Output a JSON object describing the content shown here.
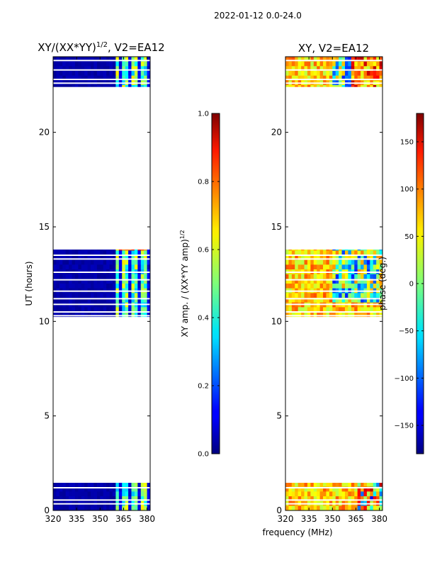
{
  "suptitle": "2022-01-12 0.0-24.0",
  "colors": {
    "white": "#ffffff",
    "black": "#000000"
  },
  "chart_data": [
    {
      "type": "heatmap",
      "id": "amp",
      "title": "XY/(XX*YY)",
      "title_sup": "1/2",
      "title_suffix": ", V2=EA12",
      "xlabel": "",
      "ylabel": "UT (hours)",
      "xlim": [
        320,
        382
      ],
      "ylim": [
        0,
        24
      ],
      "xticks": [
        320,
        335,
        350,
        365,
        380
      ],
      "yticks": [
        0,
        5,
        10,
        15,
        20
      ],
      "empty_band": [
        13.8,
        22.4
      ],
      "colorbar": {
        "label": "XY amp. / (XX*YY amp)",
        "label_sup": "1/2",
        "range": [
          0.0,
          1.0
        ],
        "ticks": [
          "0.0",
          "0.2",
          "0.4",
          "0.6",
          "0.8",
          "1.0"
        ],
        "tick_values": [
          0.0,
          0.2,
          0.4,
          0.6,
          0.8,
          1.0
        ]
      }
    },
    {
      "type": "heatmap",
      "id": "phase",
      "title": "XY, V2=EA12",
      "xlabel": "frequency (MHz)",
      "ylabel": "",
      "xlim": [
        320,
        382
      ],
      "ylim": [
        0,
        24
      ],
      "xticks": [
        320,
        335,
        350,
        365,
        380
      ],
      "yticks": [
        0,
        5,
        10,
        15,
        20
      ],
      "empty_band": [
        13.8,
        22.4
      ],
      "colorbar": {
        "label": "phase (deg.)",
        "range": [
          -180,
          180
        ],
        "ticks": [
          "150",
          "100",
          "50",
          "0",
          "−50",
          "−100",
          "−150"
        ],
        "tick_values": [
          150,
          100,
          50,
          0,
          -50,
          -100,
          -150
        ]
      }
    }
  ]
}
